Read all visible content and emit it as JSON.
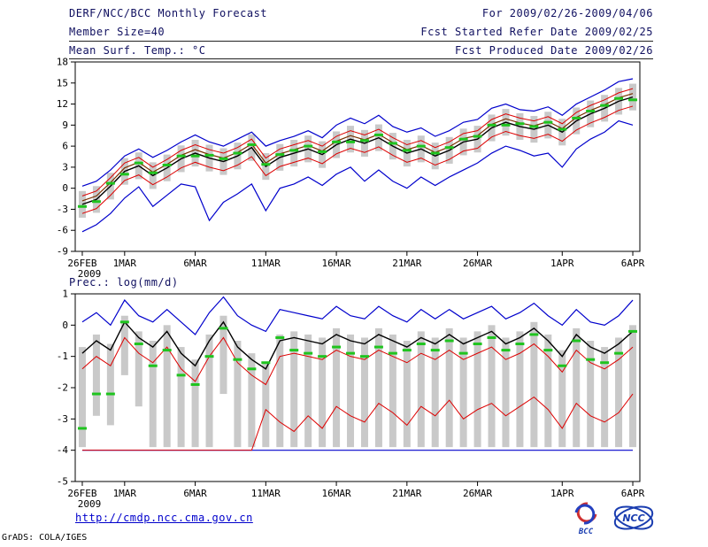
{
  "header": {
    "title": "DERF/NCC/BCC Monthly Forecast",
    "member_size": "Member Size=40",
    "temp_label": "Mean Surf. Temp.: °C",
    "for_range": "For 2009/02/26-2009/04/06",
    "fcst_started": "Fcst Started Refer Date 2009/02/25",
    "fcst_produced": "Fcst Produced Date 2009/02/26"
  },
  "footer": {
    "url": "http://cmdp.ncc.cma.gov.cn",
    "credit": "GrADS: COLA/IGES",
    "logos": {
      "bcc": "BCC",
      "ncc": "NCC"
    }
  },
  "chart_data": [
    {
      "type": "line",
      "title": "Mean Surf. Temp.: °C",
      "ylabel": "°C",
      "ylim": [
        -9,
        18
      ],
      "ytick_step": 3,
      "n_points": 40,
      "x_tick_labels": [
        "26FEB",
        "1MAR",
        "6MAR",
        "11MAR",
        "16MAR",
        "21MAR",
        "26MAR",
        "1APR",
        "6APR"
      ],
      "x_tick_positions": [
        0,
        3,
        8,
        13,
        18,
        23,
        28,
        34,
        39
      ],
      "x_sub_label": "2009",
      "bars": {
        "color": "#c9c9c9",
        "low": [
          -4.2,
          -3.5,
          -1.6,
          0.5,
          1.3,
          -0.1,
          1.0,
          2.3,
          3.1,
          2.4,
          1.9,
          2.7,
          3.9,
          1.2,
          2.5,
          3.1,
          3.7,
          2.9,
          4.3,
          5.1,
          4.5,
          5.3,
          4.1,
          3.1,
          3.7,
          2.7,
          3.5,
          4.7,
          5.1,
          6.7,
          7.5,
          6.9,
          6.5,
          7.1,
          6.1,
          7.7,
          8.7,
          9.5,
          10.5,
          11.1
        ],
        "high": [
          -0.4,
          0.3,
          2.2,
          4.3,
          5.1,
          3.7,
          4.8,
          6.1,
          6.9,
          6.2,
          5.7,
          6.5,
          7.7,
          5.0,
          6.3,
          6.9,
          7.5,
          6.7,
          8.1,
          8.9,
          8.3,
          9.1,
          7.9,
          6.9,
          7.5,
          6.5,
          7.3,
          8.5,
          8.9,
          10.5,
          11.3,
          10.7,
          10.3,
          10.9,
          9.9,
          11.5,
          12.5,
          13.3,
          14.3,
          14.9
        ]
      },
      "series": [
        {
          "name": "ensemble max",
          "color": "#0000cc",
          "width": 1.2,
          "values": [
            0.3,
            1.0,
            2.6,
            4.6,
            5.6,
            4.4,
            5.4,
            6.6,
            7.6,
            6.6,
            6.0,
            7.0,
            8.0,
            6.0,
            6.8,
            7.4,
            8.2,
            7.2,
            9.0,
            10.0,
            9.2,
            10.4,
            8.8,
            8.0,
            8.6,
            7.4,
            8.2,
            9.4,
            9.8,
            11.4,
            12.0,
            11.2,
            11.0,
            11.6,
            10.4,
            12.0,
            13.0,
            14.0,
            15.2,
            15.6
          ]
        },
        {
          "name": "ensemble min",
          "color": "#0000cc",
          "width": 1.2,
          "values": [
            -6.2,
            -5.2,
            -3.6,
            -1.4,
            0.2,
            -2.6,
            -1.0,
            0.6,
            0.2,
            -4.6,
            -2.0,
            -0.8,
            0.6,
            -3.2,
            0.0,
            0.6,
            1.6,
            0.4,
            2.0,
            3.0,
            1.0,
            2.6,
            1.0,
            0.0,
            1.6,
            0.4,
            1.6,
            2.6,
            3.6,
            5.0,
            6.0,
            5.4,
            4.6,
            5.0,
            3.0,
            5.6,
            7.0,
            8.0,
            9.6,
            9.0
          ]
        },
        {
          "name": "upper quartile",
          "color": "#dd0000",
          "width": 1,
          "values": [
            -1.1,
            -0.4,
            1.5,
            3.6,
            4.4,
            3.0,
            4.1,
            5.4,
            6.2,
            5.5,
            5.0,
            5.8,
            7.0,
            4.3,
            5.6,
            6.2,
            6.8,
            6.0,
            7.4,
            8.2,
            7.6,
            8.4,
            7.2,
            6.2,
            6.8,
            5.8,
            6.6,
            7.8,
            8.2,
            9.8,
            10.6,
            10.0,
            9.6,
            10.2,
            9.2,
            10.8,
            11.8,
            12.6,
            13.6,
            14.2
          ]
        },
        {
          "name": "lower quartile",
          "color": "#dd0000",
          "width": 1,
          "values": [
            -3.6,
            -2.9,
            -1.0,
            1.1,
            1.9,
            0.5,
            1.6,
            2.9,
            3.7,
            3.0,
            2.5,
            3.3,
            4.5,
            1.8,
            3.1,
            3.7,
            4.3,
            3.5,
            4.9,
            5.7,
            5.1,
            5.9,
            4.7,
            3.7,
            4.3,
            3.3,
            4.1,
            5.3,
            5.7,
            7.3,
            8.1,
            7.5,
            7.1,
            7.7,
            6.7,
            8.3,
            9.3,
            10.1,
            11.1,
            11.7
          ]
        },
        {
          "name": "climatology",
          "color": "#7a3000",
          "width": 1.2,
          "values": [
            -1.8,
            -1.1,
            0.8,
            2.9,
            3.7,
            2.3,
            3.4,
            4.7,
            5.5,
            4.8,
            4.3,
            5.1,
            6.3,
            3.6,
            4.9,
            5.5,
            6.1,
            5.3,
            6.7,
            7.5,
            6.9,
            7.7,
            6.5,
            5.5,
            6.1,
            5.1,
            5.9,
            7.1,
            7.5,
            9.1,
            9.9,
            9.3,
            8.9,
            9.5,
            8.5,
            10.1,
            11.1,
            11.9,
            12.9,
            13.5
          ]
        },
        {
          "name": "ensemble mean",
          "color": "#000000",
          "width": 1.4,
          "values": [
            -2.3,
            -1.6,
            0.3,
            2.4,
            3.2,
            1.8,
            2.9,
            4.2,
            5.0,
            4.3,
            3.8,
            4.6,
            5.8,
            3.1,
            4.4,
            5.0,
            5.6,
            4.8,
            6.2,
            7.0,
            6.4,
            7.2,
            6.0,
            5.0,
            5.6,
            4.6,
            5.4,
            6.6,
            7.0,
            8.6,
            9.4,
            8.8,
            8.4,
            9.0,
            8.0,
            9.6,
            10.6,
            11.4,
            12.4,
            13.0
          ]
        }
      ],
      "markers": {
        "name": "daily median",
        "color": "#1fc41f",
        "values": [
          -2.6,
          -1.9,
          0.7,
          2.0,
          3.6,
          2.2,
          3.3,
          4.6,
          4.6,
          4.7,
          4.2,
          5.0,
          6.2,
          3.4,
          4.8,
          5.4,
          6.0,
          5.2,
          6.6,
          6.6,
          6.8,
          7.6,
          6.4,
          5.4,
          6.0,
          5.0,
          5.8,
          7.0,
          7.4,
          9.0,
          9.0,
          9.2,
          8.8,
          9.4,
          8.4,
          10.0,
          11.0,
          11.8,
          12.8,
          12.6
        ]
      }
    },
    {
      "type": "line",
      "title": "Prec.: log(mm/d)",
      "ylabel": "log(mm/d)",
      "ylim": [
        -5,
        1
      ],
      "ytick_step": 1,
      "n_points": 40,
      "x_tick_labels": [
        "26FEB",
        "1MAR",
        "6MAR",
        "11MAR",
        "16MAR",
        "21MAR",
        "26MAR",
        "1APR",
        "6APR"
      ],
      "x_tick_positions": [
        0,
        3,
        8,
        13,
        18,
        23,
        28,
        34,
        39
      ],
      "x_sub_label": "2009",
      "bars": {
        "color": "#c9c9c9",
        "low": [
          -3.9,
          -2.9,
          -3.2,
          -1.6,
          -2.6,
          -3.9,
          -3.9,
          -3.9,
          -3.9,
          -3.9,
          -2.2,
          -3.9,
          -3.9,
          -3.9,
          -3.9,
          -3.9,
          -3.9,
          -3.9,
          -3.9,
          -3.9,
          -3.9,
          -3.9,
          -3.9,
          -3.9,
          -3.9,
          -3.9,
          -3.9,
          -3.9,
          -3.9,
          -3.9,
          -3.9,
          -3.9,
          -3.9,
          -3.9,
          -3.9,
          -3.9,
          -3.9,
          -3.9,
          -3.9,
          -3.9
        ],
        "high": [
          -0.7,
          -0.3,
          -0.6,
          0.3,
          -0.2,
          -0.5,
          0.0,
          -0.7,
          -1.1,
          -0.3,
          0.3,
          -0.5,
          -0.9,
          -1.2,
          -0.3,
          -0.2,
          -0.3,
          -0.4,
          -0.1,
          -0.3,
          -0.4,
          -0.1,
          -0.3,
          -0.5,
          -0.2,
          -0.4,
          -0.1,
          -0.4,
          -0.2,
          0.0,
          -0.4,
          -0.2,
          0.1,
          -0.3,
          -0.8,
          -0.1,
          -0.5,
          -0.7,
          -0.4,
          0.0
        ]
      },
      "series": [
        {
          "name": "ensemble max",
          "color": "#0000cc",
          "width": 1.2,
          "values": [
            0.1,
            0.4,
            0.0,
            0.8,
            0.3,
            0.1,
            0.5,
            0.1,
            -0.3,
            0.4,
            0.9,
            0.3,
            0.0,
            -0.2,
            0.5,
            0.4,
            0.3,
            0.2,
            0.6,
            0.3,
            0.2,
            0.6,
            0.3,
            0.1,
            0.5,
            0.2,
            0.5,
            0.2,
            0.4,
            0.6,
            0.2,
            0.4,
            0.7,
            0.3,
            0.0,
            0.5,
            0.1,
            0.0,
            0.3,
            0.8
          ]
        },
        {
          "name": "ensemble min",
          "color": "#0000cc",
          "width": 1.2,
          "values": [
            -4.0,
            -4.0,
            -4.0,
            -4.0,
            -4.0,
            -4.0,
            -4.0,
            -4.0,
            -4.0,
            -4.0,
            -4.0,
            -4.0,
            -4.0,
            -4.0,
            -4.0,
            -4.0,
            -4.0,
            -4.0,
            -4.0,
            -4.0,
            -4.0,
            -4.0,
            -4.0,
            -4.0,
            -4.0,
            -4.0,
            -4.0,
            -4.0,
            -4.0,
            -4.0,
            -4.0,
            -4.0,
            -4.0,
            -4.0,
            -4.0,
            -4.0,
            -4.0,
            -4.0,
            -4.0,
            -4.0
          ]
        },
        {
          "name": "upper quartile",
          "color": "#dd0000",
          "width": 1,
          "values": [
            -1.4,
            -1.0,
            -1.3,
            -0.4,
            -0.9,
            -1.2,
            -0.7,
            -1.4,
            -1.8,
            -1.0,
            -0.4,
            -1.2,
            -1.6,
            -1.9,
            -1.0,
            -0.9,
            -1.0,
            -1.1,
            -0.8,
            -1.0,
            -1.1,
            -0.8,
            -1.0,
            -1.2,
            -0.9,
            -1.1,
            -0.8,
            -1.1,
            -0.9,
            -0.7,
            -1.1,
            -0.9,
            -0.6,
            -1.0,
            -1.5,
            -0.8,
            -1.2,
            -1.4,
            -1.1,
            -0.7
          ]
        },
        {
          "name": "lower quartile",
          "color": "#dd0000",
          "width": 1,
          "values": [
            -4.0,
            -4.0,
            -4.0,
            -4.0,
            -4.0,
            -4.0,
            -4.0,
            -4.0,
            -4.0,
            -4.0,
            -4.0,
            -4.0,
            -4.0,
            -2.7,
            -3.1,
            -3.4,
            -2.9,
            -3.3,
            -2.6,
            -2.9,
            -3.1,
            -2.5,
            -2.8,
            -3.2,
            -2.6,
            -2.9,
            -2.4,
            -3.0,
            -2.7,
            -2.5,
            -2.9,
            -2.6,
            -2.3,
            -2.7,
            -3.3,
            -2.5,
            -2.9,
            -3.1,
            -2.8,
            -2.2
          ]
        },
        {
          "name": "ensemble mean",
          "color": "#000000",
          "width": 1.4,
          "values": [
            -0.9,
            -0.5,
            -0.8,
            0.1,
            -0.4,
            -0.7,
            -0.2,
            -0.9,
            -1.3,
            -0.5,
            0.1,
            -0.7,
            -1.1,
            -1.4,
            -0.5,
            -0.4,
            -0.5,
            -0.6,
            -0.3,
            -0.5,
            -0.6,
            -0.3,
            -0.5,
            -0.7,
            -0.4,
            -0.6,
            -0.3,
            -0.6,
            -0.4,
            -0.2,
            -0.6,
            -0.4,
            -0.1,
            -0.5,
            -1.0,
            -0.3,
            -0.7,
            -0.9,
            -0.6,
            -0.2
          ]
        }
      ],
      "markers": {
        "name": "daily median",
        "color": "#1fc41f",
        "values": [
          -3.3,
          -2.2,
          -2.2,
          0.1,
          -0.6,
          -1.3,
          -0.8,
          -1.6,
          -1.9,
          -1.0,
          -0.1,
          -1.1,
          -1.4,
          -1.2,
          -0.4,
          -0.8,
          -0.9,
          -1.0,
          -0.7,
          -0.9,
          -1.0,
          -0.7,
          -0.9,
          -0.8,
          -0.6,
          -0.8,
          -0.5,
          -0.9,
          -0.6,
          -0.4,
          -0.8,
          -0.6,
          -0.3,
          -0.8,
          -1.3,
          -0.5,
          -1.1,
          -1.2,
          -0.9,
          -0.2
        ]
      }
    }
  ]
}
